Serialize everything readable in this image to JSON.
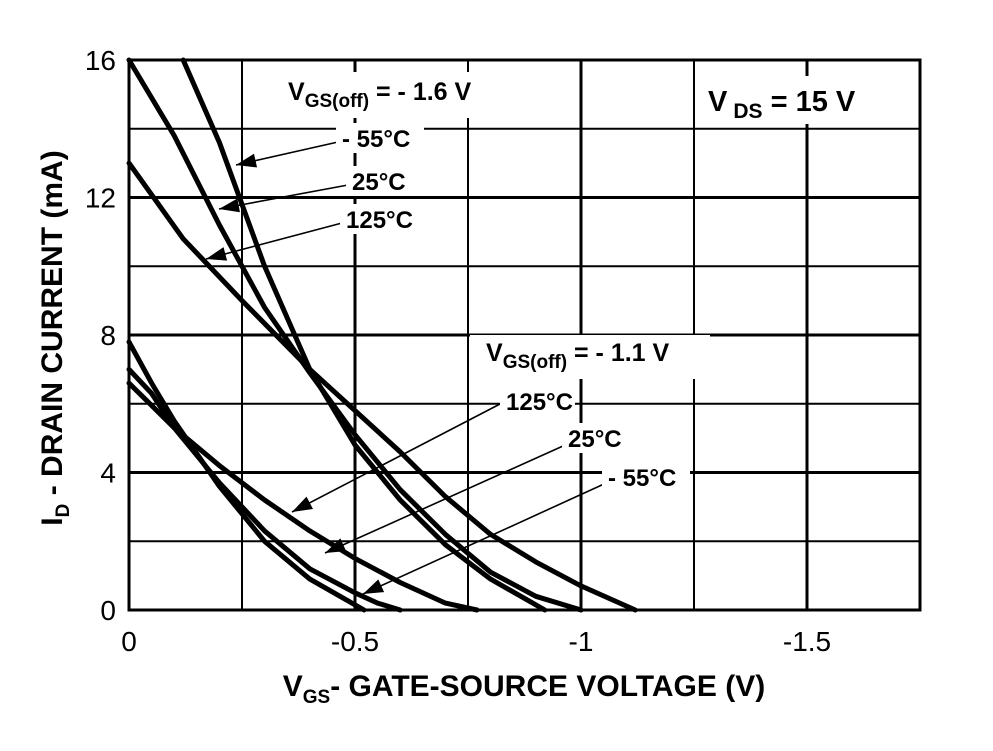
{
  "chart_data": {
    "type": "line",
    "xlabel_main": "V",
    "xlabel_sub": "GS",
    "xlabel_rest": "- GATE-SOURCE VOLTAGE (V)",
    "ylabel_main": "I",
    "ylabel_sub": "D",
    "ylabel_rest": " - DRAIN CURRENT (mA)",
    "xlim": [
      0,
      -1.75
    ],
    "ylim": [
      0,
      16
    ],
    "x_ticks": [
      0,
      -0.5,
      -1,
      -1.5
    ],
    "x_tick_labels": [
      "0",
      "-0.5",
      "-1",
      "-1.5"
    ],
    "y_ticks": [
      0,
      4,
      8,
      12,
      16
    ],
    "y_tick_labels": [
      "0",
      "4",
      "8",
      "12",
      "16"
    ],
    "grid": true,
    "vds_label": {
      "main": "V",
      "sub": "DS",
      "rest": " = 15 V"
    },
    "groups": [
      {
        "label_main": "V",
        "label_sub": "GS(off)",
        "label_rest": " = - 1.6 V",
        "series": [
          {
            "name": "- 55°C",
            "points": [
              [
                -0.12,
                16
              ],
              [
                -0.2,
                13.6
              ],
              [
                -0.3,
                10.0
              ],
              [
                -0.4,
                7.0
              ],
              [
                -0.5,
                4.8
              ],
              [
                -0.6,
                3.2
              ],
              [
                -0.7,
                1.9
              ],
              [
                -0.8,
                0.9
              ],
              [
                -0.88,
                0.3
              ],
              [
                -0.92,
                0
              ]
            ]
          },
          {
            "name": "25°C",
            "points": [
              [
                0,
                16
              ],
              [
                -0.1,
                13.8
              ],
              [
                -0.2,
                11.2
              ],
              [
                -0.3,
                8.8
              ],
              [
                -0.4,
                6.9
              ],
              [
                -0.5,
                5.1
              ],
              [
                -0.6,
                3.5
              ],
              [
                -0.7,
                2.2
              ],
              [
                -0.8,
                1.1
              ],
              [
                -0.9,
                0.4
              ],
              [
                -1.0,
                0
              ]
            ]
          },
          {
            "name": "125°C",
            "points": [
              [
                0,
                13
              ],
              [
                -0.12,
                10.8
              ],
              [
                -0.25,
                9.0
              ],
              [
                -0.4,
                7.0
              ],
              [
                -0.5,
                5.8
              ],
              [
                -0.6,
                4.6
              ],
              [
                -0.7,
                3.3
              ],
              [
                -0.8,
                2.2
              ],
              [
                -0.9,
                1.4
              ],
              [
                -1.0,
                0.7
              ],
              [
                -1.12,
                0
              ]
            ]
          }
        ]
      },
      {
        "label_main": "V",
        "label_sub": "GS(off)",
        "label_rest": " = - 1.1 V",
        "series": [
          {
            "name": "125°C",
            "points": [
              [
                0,
                6.6
              ],
              [
                -0.1,
                5.3
              ],
              [
                -0.2,
                4.2
              ],
              [
                -0.3,
                3.2
              ],
              [
                -0.4,
                2.3
              ],
              [
                -0.5,
                1.5
              ],
              [
                -0.6,
                0.8
              ],
              [
                -0.7,
                0.2
              ],
              [
                -0.77,
                0
              ]
            ]
          },
          {
            "name": "25°C",
            "points": [
              [
                0,
                7.0
              ],
              [
                -0.05,
                6.3
              ],
              [
                -0.1,
                5.3
              ],
              [
                -0.2,
                3.7
              ],
              [
                -0.3,
                2.3
              ],
              [
                -0.4,
                1.2
              ],
              [
                -0.5,
                0.5
              ],
              [
                -0.55,
                0.2
              ],
              [
                -0.6,
                0
              ]
            ]
          },
          {
            "name": "- 55°C",
            "points": [
              [
                0,
                7.8
              ],
              [
                -0.05,
                6.6
              ],
              [
                -0.1,
                5.5
              ],
              [
                -0.2,
                3.6
              ],
              [
                -0.3,
                2.0
              ],
              [
                -0.4,
                0.9
              ],
              [
                -0.48,
                0.3
              ],
              [
                -0.52,
                0
              ]
            ]
          }
        ]
      }
    ]
  }
}
